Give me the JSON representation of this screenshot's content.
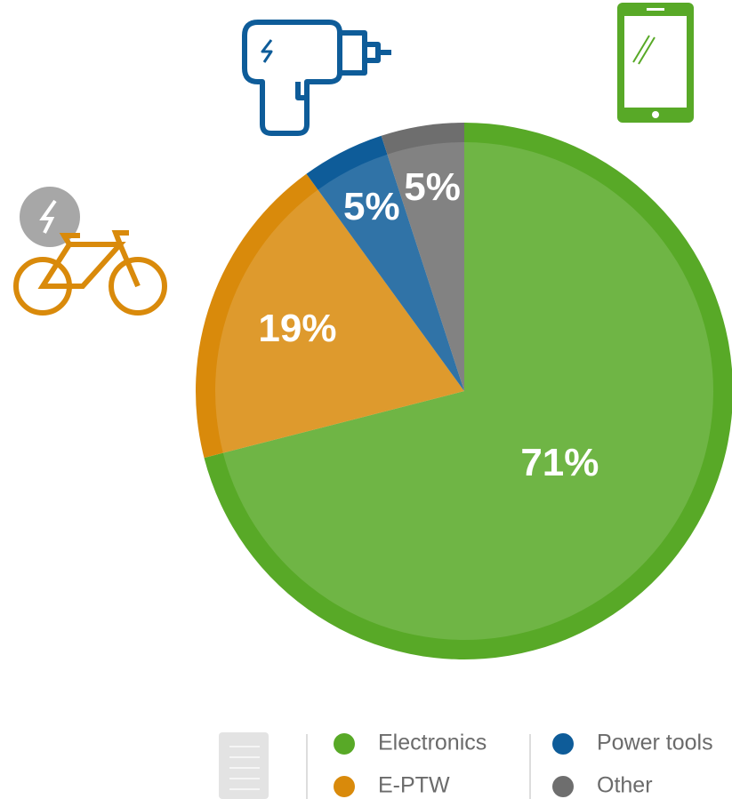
{
  "chart_data": {
    "type": "pie",
    "categories": [
      "Electronics",
      "E-PTW",
      "Power tools",
      "Other"
    ],
    "values": [
      71,
      19,
      5,
      5
    ],
    "value_labels": [
      "71%",
      "19%",
      "5%",
      "5%"
    ],
    "colors": [
      "#58a927",
      "#d98a0b",
      "#0e5c99",
      "#6e6e6e"
    ]
  }
}
